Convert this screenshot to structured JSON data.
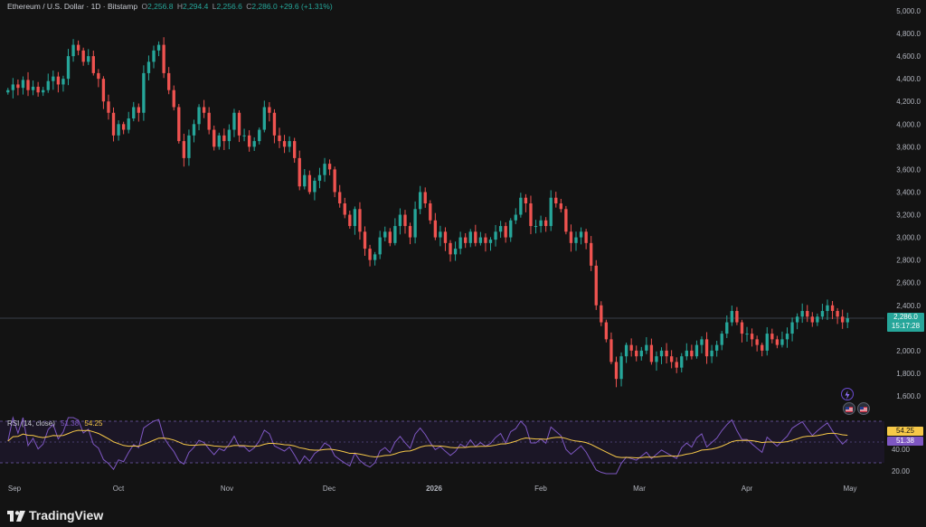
{
  "header": {
    "symbol": "Ethereum / U.S. Dollar · 1D · Bitstamp",
    "open_label": "O",
    "open": "2,256.8",
    "high_label": "H",
    "high": "2,294.4",
    "low_label": "L",
    "low": "2,256.6",
    "close_label": "C",
    "close": "2,286.0",
    "change": "+29.6 (+1.31%)"
  },
  "price_axis": {
    "ticks": [
      "5,000.0",
      "4,800.0",
      "4,600.0",
      "4,400.0",
      "4,200.0",
      "4,000.0",
      "3,800.0",
      "3,600.0",
      "3,400.0",
      "3,200.0",
      "3,000.0",
      "2,800.0",
      "2,600.0",
      "2,400.0",
      "2,000.0",
      "1,800.0",
      "1,600.0"
    ],
    "last_price": "2,286.0",
    "countdown": "15:17:28"
  },
  "rsi": {
    "label": "RSI (14, close)",
    "value": "51.38",
    "ma_value": "54.25",
    "ticks": [
      "40.00",
      "20.00"
    ]
  },
  "time_axis": {
    "labels": [
      "Sep",
      "Oct",
      "Nov",
      "Dec",
      "2026",
      "Feb",
      "Mar",
      "Apr",
      "May"
    ]
  },
  "footer": {
    "brand": "TradingView"
  },
  "colors": {
    "up": "#26a69a",
    "down": "#ef5350",
    "rsi_line": "#7e57c2",
    "rsi_ma": "#f7c948",
    "background": "#131313"
  },
  "icons": {
    "event_flag": "lightning-icon",
    "flag_us_1": "us-flag-icon",
    "flag_us_2": "us-flag-icon"
  },
  "chart_data": {
    "type": "candlestick",
    "ylim": [
      1600,
      5000
    ],
    "rsi_range": [
      20,
      80
    ],
    "close_series": [
      4300,
      4350,
      4320,
      4390,
      4300,
      4330,
      4280,
      4300,
      4380,
      4420,
      4350,
      4400,
      4600,
      4700,
      4650,
      4550,
      4600,
      4450,
      4400,
      4200,
      4100,
      3900,
      4000,
      3950,
      4050,
      4150,
      4100,
      4450,
      4550,
      4650,
      4700,
      4450,
      4300,
      4150,
      3850,
      3700,
      3900,
      4000,
      4150,
      4100,
      3950,
      3800,
      3900,
      3850,
      3950,
      4100,
      3900,
      3900,
      3800,
      3850,
      3950,
      4150,
      4100,
      3900,
      3850,
      3800,
      3850,
      3700,
      3450,
      3550,
      3400,
      3500,
      3550,
      3650,
      3600,
      3400,
      3300,
      3200,
      3100,
      3250,
      3050,
      2900,
      2800,
      2850,
      3000,
      3050,
      2950,
      3100,
      3200,
      3100,
      3000,
      3250,
      3400,
      3300,
      3150,
      3000,
      3050,
      2950,
      2850,
      2900,
      3000,
      2950,
      3050,
      2950,
      3000,
      2950,
      2980,
      3050,
      3100,
      3000,
      3150,
      3200,
      3350,
      3300,
      3100,
      3100,
      3150,
      3100,
      3350,
      3300,
      3250,
      3050,
      2950,
      3000,
      3050,
      2950,
      2750,
      2400,
      2250,
      2100,
      1900,
      1750,
      1950,
      2050,
      2000,
      1950,
      2000,
      2050,
      1900,
      1950,
      2000,
      1950,
      1900,
      1850,
      1950,
      2000,
      1950,
      2050,
      2100,
      1950,
      2000,
      2050,
      2150,
      2250,
      2350,
      2250,
      2150,
      2150,
      2100,
      2050,
      2000,
      2150,
      2100,
      2050,
      2100,
      2150,
      2250,
      2300,
      2350,
      2300,
      2250,
      2300,
      2350,
      2400,
      2350,
      2300,
      2250,
      2286
    ]
  }
}
